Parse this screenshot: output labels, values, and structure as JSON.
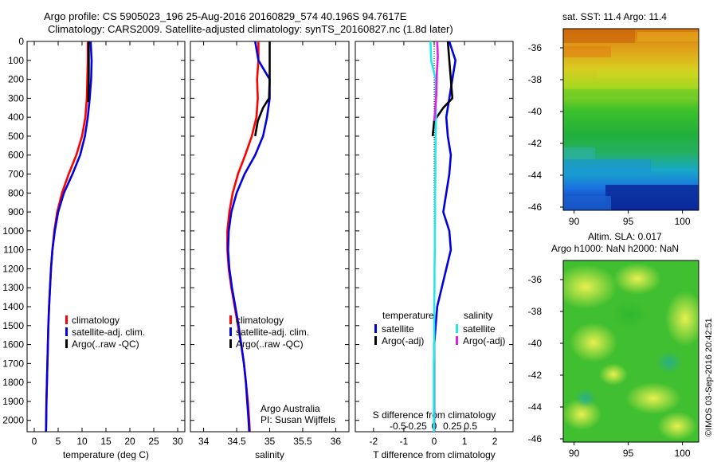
{
  "title": {
    "line1": "Argo profile: CS 5905023_196 25-Aug-2016 20160829_574 40.196S 94.7617E",
    "line2": "Climatology: CARS2009. Satellite-adjusted climatology: synTS_20160827.nc (1.8d later)"
  },
  "colors": {
    "climatology": "#ff0000",
    "satellite": "#0000e0",
    "argo": "#000000",
    "sal_satellite": "#22e8e8",
    "sal_argo": "#e020e0"
  },
  "credit": {
    "line1": "Argo Australia",
    "line2": "PI: Susan Wijffels"
  },
  "watermark": "©IMOS 03-Sep-2016 20:42:51",
  "map_top": {
    "title": "sat. SST: 11.4 Argo: 11.4"
  },
  "map_bottom": {
    "title1": "Altim. SLA: 0.017",
    "title2": "Argo h1000: NaN h2000: NaN"
  },
  "chart_data": [
    {
      "type": "line",
      "panel": "temperature",
      "xlabel": "temperature (deg C)",
      "ylabel": "",
      "xlim": [
        -1.5,
        31.5
      ],
      "ylim": [
        2060,
        0
      ],
      "xticks": [
        0,
        5,
        10,
        15,
        20,
        25,
        30
      ],
      "yticks": [
        0,
        100,
        200,
        300,
        400,
        500,
        600,
        700,
        800,
        900,
        1000,
        1100,
        1200,
        1300,
        1400,
        1500,
        1600,
        1700,
        1800,
        1900,
        2000
      ],
      "legend": {
        "position": "lower-right",
        "entries": [
          "climatology",
          "satellite-adj. clim.",
          "Argo(..raw -QC)"
        ]
      },
      "series": [
        {
          "name": "climatology",
          "color_key": "climatology",
          "x": [
            11.2,
            11.2,
            11.1,
            11.0,
            10.7,
            10.0,
            8.8,
            7.2,
            5.8,
            4.8,
            4.2,
            3.8,
            3.5,
            3.3,
            3.1,
            2.95,
            2.85,
            2.75,
            2.65,
            2.55,
            2.5,
            2.45
          ],
          "y": [
            0,
            100,
            200,
            300,
            400,
            500,
            600,
            700,
            800,
            900,
            1000,
            1100,
            1200,
            1300,
            1400,
            1500,
            1600,
            1700,
            1800,
            1900,
            2000,
            2060
          ]
        },
        {
          "name": "satellite-adj. clim.",
          "color_key": "satellite",
          "x": [
            11.8,
            12.0,
            11.9,
            11.6,
            11.2,
            10.6,
            9.6,
            8.0,
            6.2,
            5.0,
            4.3,
            3.8,
            3.5,
            3.3,
            3.1,
            2.95,
            2.85,
            2.75,
            2.65,
            2.55,
            2.5,
            2.45
          ],
          "y": [
            0,
            100,
            200,
            300,
            400,
            500,
            600,
            700,
            800,
            900,
            1000,
            1100,
            1200,
            1300,
            1400,
            1500,
            1600,
            1700,
            1800,
            1900,
            2000,
            2060
          ]
        },
        {
          "name": "Argo(..raw -QC)",
          "color_key": "argo",
          "x": [
            11.4,
            11.4,
            11.4,
            11.3,
            11.3
          ],
          "y": [
            0,
            100,
            200,
            300,
            320
          ]
        }
      ]
    },
    {
      "type": "line",
      "panel": "salinity",
      "xlabel": "salinity",
      "ylabel": "",
      "xlim": [
        33.8,
        36.2
      ],
      "ylim": [
        2060,
        0
      ],
      "xticks": [
        34,
        34.5,
        35,
        35.5,
        36
      ],
      "legend": {
        "position": "lower-right",
        "entries": [
          "climatology",
          "satellite-adj. clim.",
          "Argo(..raw -QC)"
        ]
      },
      "series": [
        {
          "name": "climatology",
          "color_key": "climatology",
          "x": [
            34.83,
            34.83,
            34.81,
            34.82,
            34.8,
            34.73,
            34.63,
            34.52,
            34.44,
            34.39,
            34.36,
            34.36,
            34.38,
            34.42,
            34.47,
            34.52,
            34.57,
            34.61,
            34.64,
            34.67,
            34.69,
            34.7
          ],
          "y": [
            0,
            100,
            200,
            300,
            400,
            500,
            600,
            700,
            800,
            900,
            1000,
            1100,
            1200,
            1300,
            1400,
            1500,
            1600,
            1700,
            1800,
            1900,
            2000,
            2060
          ]
        },
        {
          "name": "satellite-adj. clim.",
          "color_key": "satellite",
          "x": [
            34.78,
            34.83,
            35.0,
            35.0,
            34.96,
            34.9,
            34.78,
            34.62,
            34.5,
            34.42,
            34.38,
            34.37,
            34.39,
            34.43,
            34.48,
            34.53,
            34.57,
            34.61,
            34.64,
            34.66,
            34.68,
            34.69
          ],
          "y": [
            0,
            100,
            200,
            300,
            400,
            500,
            600,
            700,
            800,
            900,
            1000,
            1100,
            1200,
            1300,
            1400,
            1500,
            1600,
            1700,
            1800,
            1900,
            2000,
            2060
          ]
        },
        {
          "name": "Argo(..raw -QC)",
          "color_key": "argo",
          "x": [
            35.0,
            35.0,
            35.0,
            34.99,
            34.9,
            34.82,
            34.78
          ],
          "y": [
            0,
            100,
            200,
            300,
            350,
            420,
            500
          ]
        }
      ]
    },
    {
      "type": "line",
      "panel": "difference",
      "xlabel": "T difference from climatology",
      "xlabel_top": "S difference from climatology",
      "xlim": [
        -2.6,
        2.6
      ],
      "ylim": [
        2060,
        0
      ],
      "xticks": [
        -2,
        -1,
        0,
        1,
        2
      ],
      "xticks_salinity": [
        -0.5,
        -0.25,
        0,
        0.25,
        0.5
      ],
      "legend": {
        "position": "lower",
        "headers": [
          "temperature",
          "salinity"
        ],
        "entries": [
          "satellite",
          "Argo(-adj)",
          "satellite",
          "Argo(-adj)"
        ]
      },
      "series": [
        {
          "name": "temperature satellite",
          "color_key": "satellite",
          "x": [
            0.5,
            0.7,
            0.6,
            0.5,
            0.4,
            0.45,
            0.55,
            0.5,
            0.4,
            0.3,
            0.5,
            0.55,
            0.4,
            0.25,
            0.1,
            0.05,
            0.0,
            0.0,
            0.0,
            0.0,
            0.0,
            0.0
          ],
          "y": [
            0,
            100,
            200,
            300,
            400,
            500,
            600,
            700,
            800,
            900,
            1000,
            1100,
            1200,
            1300,
            1400,
            1500,
            1600,
            1700,
            1800,
            1900,
            2000,
            2060
          ]
        },
        {
          "name": "temperature Argo(-adj)",
          "color_key": "argo",
          "x": [
            0.45,
            0.5,
            0.55,
            0.6,
            0.3,
            0.0,
            -0.05
          ],
          "y": [
            0,
            100,
            200,
            300,
            350,
            420,
            500
          ]
        },
        {
          "name": "salinity satellite",
          "color_key": "sal_satellite",
          "x": [
            -0.12,
            -0.1,
            0.05,
            0.05,
            0.06,
            0.05,
            0.04,
            0.04,
            0.03,
            0.03,
            0.02,
            0.02,
            0.01,
            0.01,
            0.0,
            0.0,
            0.0,
            -0.01,
            -0.01,
            -0.01,
            -0.01,
            -0.01
          ],
          "y": [
            0,
            100,
            200,
            300,
            400,
            500,
            600,
            700,
            800,
            900,
            1000,
            1100,
            1200,
            1300,
            1400,
            1500,
            1600,
            1700,
            1800,
            1900,
            2000,
            2060
          ]
        },
        {
          "name": "salinity Argo(-adj)",
          "color_key": "sal_argo",
          "x": [
            0.1,
            0.12,
            0.09,
            0.07,
            0.04,
            0.0
          ],
          "y": [
            0,
            80,
            160,
            280,
            350,
            420
          ]
        }
      ]
    },
    {
      "type": "heatmap",
      "panel": "map-sst",
      "title": "sat. SST: 11.4 Argo: 11.4",
      "xlim": [
        89,
        101.5
      ],
      "ylim": [
        -46.2,
        -34.8
      ],
      "xticks": [
        90,
        95,
        100
      ],
      "yticks": [
        -36,
        -38,
        -40,
        -42,
        -44,
        -46
      ]
    },
    {
      "type": "heatmap",
      "panel": "map-sla",
      "title": "Altim. SLA: 0.017",
      "subtitle": "Argo h1000: NaN h2000: NaN",
      "xlim": [
        89,
        101.5
      ],
      "ylim": [
        -46.2,
        -34.8
      ],
      "xticks": [
        90,
        95,
        100
      ],
      "yticks": [
        -36,
        -38,
        -40,
        -42,
        -44,
        -46
      ]
    }
  ]
}
